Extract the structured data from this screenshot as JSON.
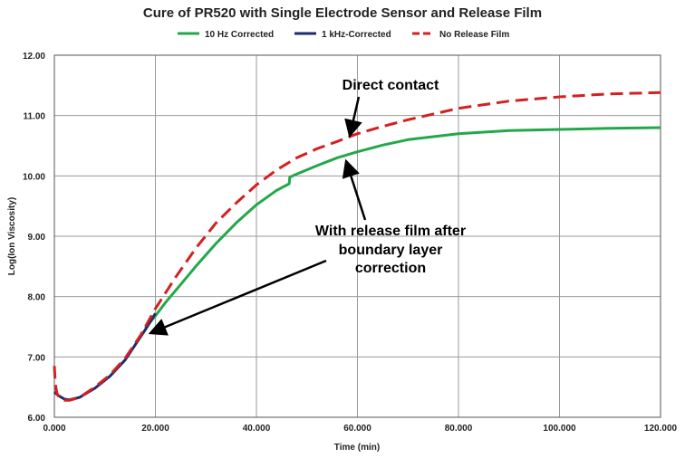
{
  "chart_data": {
    "type": "line",
    "title": "Cure of PR520 with Single Electrode Sensor and Release Film",
    "xlabel": "Time (min)",
    "ylabel": "Log(Ion Viscosity)",
    "xlim": [
      0,
      120
    ],
    "ylim": [
      6,
      12
    ],
    "x_ticks": [
      "0.000",
      "20.000",
      "40.000",
      "60.000",
      "80.000",
      "100.000",
      "120.000"
    ],
    "y_ticks": [
      "6.00",
      "7.00",
      "8.00",
      "9.00",
      "10.00",
      "11.00",
      "12.00"
    ],
    "grid": true,
    "legend_position": "top",
    "series": [
      {
        "name": "10 Hz Corrected",
        "color": "#22a84a",
        "style": "solid",
        "x": [
          18,
          20,
          22,
          25,
          28,
          32,
          36,
          40,
          44,
          46.5,
          46.6,
          48,
          52,
          56,
          60,
          65,
          70,
          80,
          90,
          100,
          110,
          120
        ],
        "y": [
          7.48,
          7.68,
          7.9,
          8.2,
          8.5,
          8.88,
          9.22,
          9.52,
          9.76,
          9.87,
          9.98,
          10.03,
          10.17,
          10.3,
          10.4,
          10.51,
          10.6,
          10.7,
          10.75,
          10.77,
          10.79,
          10.8
        ]
      },
      {
        "name": "1 kHz-Corrected",
        "color": "#1a2c6e",
        "style": "solid",
        "x": [
          0,
          0.5,
          1,
          2,
          3,
          5,
          8,
          11,
          14,
          16,
          18,
          20
        ],
        "y": [
          6.42,
          6.38,
          6.35,
          6.3,
          6.29,
          6.33,
          6.48,
          6.68,
          6.95,
          7.2,
          7.45,
          7.72
        ]
      },
      {
        "name": "No Release Film",
        "color": "#d42020",
        "style": "dashed",
        "x": [
          0,
          0.2,
          0.5,
          1,
          2,
          3,
          5,
          8,
          11,
          14,
          17,
          20,
          24,
          28,
          32,
          36,
          40,
          44,
          48,
          52,
          56,
          60,
          65,
          70,
          80,
          90,
          100,
          110,
          120
        ],
        "y": [
          6.85,
          6.55,
          6.4,
          6.32,
          6.28,
          6.28,
          6.33,
          6.5,
          6.7,
          6.98,
          7.35,
          7.8,
          8.32,
          8.8,
          9.22,
          9.55,
          9.85,
          10.1,
          10.3,
          10.45,
          10.57,
          10.7,
          10.82,
          10.93,
          11.12,
          11.24,
          11.31,
          11.36,
          11.38
        ]
      }
    ],
    "annotations": [
      {
        "lines": [
          "Direct contact"
        ]
      },
      {
        "lines": [
          "With release film after",
          "boundary layer",
          "correction"
        ]
      }
    ]
  }
}
